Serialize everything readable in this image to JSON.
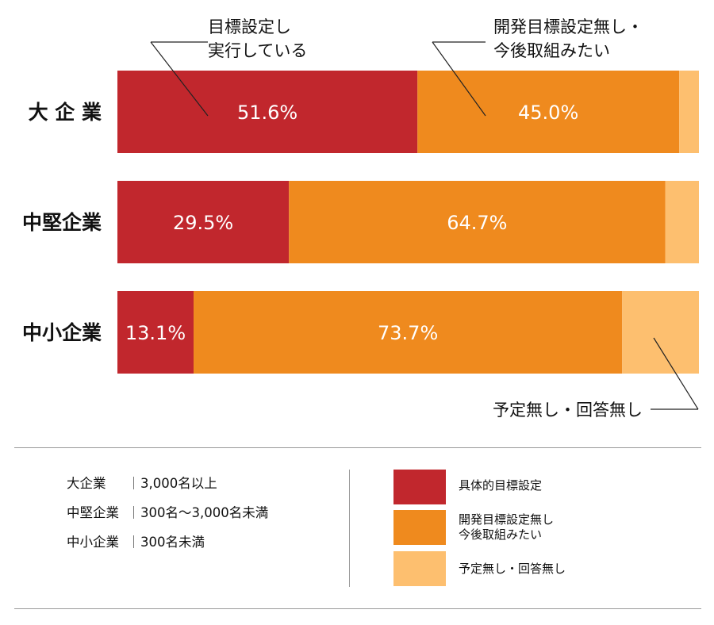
{
  "chart_data": {
    "type": "bar",
    "orientation": "horizontal",
    "stacked": true,
    "normalized": true,
    "categories": [
      "大 企 業",
      "中堅企業",
      "中小企業"
    ],
    "series": [
      {
        "name": "具体的目標設定",
        "color": "#c1272d",
        "values": [
          51.6,
          29.5,
          13.1
        ],
        "value_labels": [
          "51.6%",
          "29.5%",
          "13.1%"
        ]
      },
      {
        "name": "開発目標設定無し・今後取組みたい",
        "color": "#ef8a1e",
        "values": [
          45.0,
          64.7,
          73.7
        ],
        "value_labels": [
          "45.0%",
          "64.7%",
          "73.7%"
        ]
      },
      {
        "name": "予定無し・回答無し",
        "color": "#fdbf6f",
        "values": [
          3.4,
          5.8,
          13.2
        ],
        "value_labels": [
          "",
          "",
          ""
        ]
      }
    ],
    "annotations": {
      "top_left": [
        "目標設定し",
        "実行している"
      ],
      "top_right": [
        "開発目標設定無し・",
        "今後取組みたい"
      ],
      "bottom_right": "予定無し・回答無し"
    },
    "legend": [
      {
        "label": "具体的目標設定",
        "color": "#c1272d"
      },
      {
        "label": "開発目標設定無し\n今後取組みたい",
        "color": "#ef8a1e"
      },
      {
        "label": "予定無し・回答無し",
        "color": "#fdbf6f"
      }
    ],
    "grid": false
  },
  "company_sizes": [
    {
      "name": "大企業",
      "range": "3,000名以上"
    },
    {
      "name": "中堅企業",
      "range": "300名〜3,000名未満"
    },
    {
      "name": "中小企業",
      "range": "300名未満"
    }
  ],
  "colors": {
    "leader": "#222222",
    "divider": "#9a9a9a"
  }
}
